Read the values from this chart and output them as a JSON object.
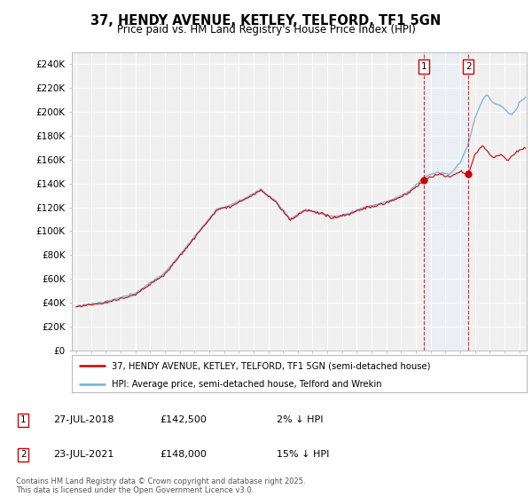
{
  "title": "37, HENDY AVENUE, KETLEY, TELFORD, TF1 5GN",
  "subtitle": "Price paid vs. HM Land Registry's House Price Index (HPI)",
  "ylabel_ticks": [
    "£0",
    "£20K",
    "£40K",
    "£60K",
    "£80K",
    "£100K",
    "£120K",
    "£140K",
    "£160K",
    "£180K",
    "£200K",
    "£220K",
    "£240K"
  ],
  "ytick_values": [
    0,
    20000,
    40000,
    60000,
    80000,
    100000,
    120000,
    140000,
    160000,
    180000,
    200000,
    220000,
    240000
  ],
  "ylim": [
    0,
    250000
  ],
  "xlim_start": 1994.7,
  "xlim_end": 2025.5,
  "legend_line1": "37, HENDY AVENUE, KETLEY, TELFORD, TF1 5GN (semi-detached house)",
  "legend_line2": "HPI: Average price, semi-detached house, Telford and Wrekin",
  "sale1_label": "1",
  "sale1_date": "27-JUL-2018",
  "sale1_price": "£142,500",
  "sale1_note": "2% ↓ HPI",
  "sale1_year": 2018.56,
  "sale1_price_val": 142500,
  "sale2_label": "2",
  "sale2_date": "23-JUL-2021",
  "sale2_price": "£148,000",
  "sale2_note": "15% ↓ HPI",
  "sale2_year": 2021.56,
  "sale2_price_val": 148000,
  "copyright": "Contains HM Land Registry data © Crown copyright and database right 2025.\nThis data is licensed under the Open Government Licence v3.0.",
  "color_hpi": "#7bafd4",
  "color_price": "#cc0000",
  "color_sale_vline": "#cc0000",
  "color_shade": "#ddeeff",
  "background_chart": "#f0f0f0",
  "background_fig": "#ffffff"
}
